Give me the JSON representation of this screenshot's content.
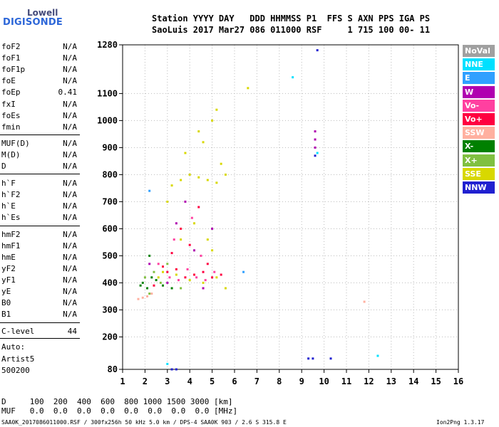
{
  "logo": {
    "line1": "Lowell",
    "line2": "DIGISONDE"
  },
  "header": {
    "line1": "Station YYYY DAY   DDD HHMMSS P1  FFS S AXN PPS IGA PS",
    "line2": "SaoLuis 2017 Mar27 086 011000 RSF     1 715 100 00- 11"
  },
  "parameters": [
    {
      "name": "foF2",
      "value": "N/A"
    },
    {
      "name": "foF1",
      "value": "N/A"
    },
    {
      "name": "foF1p",
      "value": "N/A"
    },
    {
      "name": "foE",
      "value": "N/A"
    },
    {
      "name": "foEp",
      "value": "0.41"
    },
    {
      "name": "fxI",
      "value": "N/A"
    },
    {
      "name": "foEs",
      "value": "N/A"
    },
    {
      "name": "fmin",
      "value": "N/A"
    },
    {
      "name": "MUF(D)",
      "value": "N/A"
    },
    {
      "name": "M(D)",
      "value": "N/A"
    },
    {
      "name": "D",
      "value": "N/A"
    },
    {
      "name": "h`F",
      "value": "N/A"
    },
    {
      "name": "h`F2",
      "value": "N/A"
    },
    {
      "name": "h`E",
      "value": "N/A"
    },
    {
      "name": "h`Es",
      "value": "N/A"
    },
    {
      "name": "hmF2",
      "value": "N/A"
    },
    {
      "name": "hmF1",
      "value": "N/A"
    },
    {
      "name": "hmE",
      "value": "N/A"
    },
    {
      "name": "yF2",
      "value": "N/A"
    },
    {
      "name": "yF1",
      "value": "N/A"
    },
    {
      "name": "yE",
      "value": "N/A"
    },
    {
      "name": "B0",
      "value": "N/A"
    },
    {
      "name": "B1",
      "value": "N/A"
    },
    {
      "name": "C-level",
      "value": "44"
    }
  ],
  "auto": {
    "line1": "Auto:",
    "line2": "Artist5",
    "line3": "500200"
  },
  "bottom_table": {
    "row1": "D     100  200  400  600  800 1000 1500 3000 [km]",
    "row2": "MUF   0.0  0.0  0.0  0.0  0.0  0.0  0.0  0.0 [MHz]"
  },
  "footer": {
    "left": "SAA0K_2017086011000.RSF / 300fx256h 50 kHz 5.0 km / DPS-4 SAA0K 903 / 2.6 S 315.8 E",
    "right": "Ion2Png 1.3.17"
  },
  "legend": [
    {
      "label": "NoVal",
      "color": "#a0a0a0"
    },
    {
      "label": "NNE",
      "color": "#00e0ff"
    },
    {
      "label": "E",
      "color": "#30a0ff"
    },
    {
      "label": "W",
      "color": "#b000b0"
    },
    {
      "label": "Vo-",
      "color": "#ff40a0"
    },
    {
      "label": "Vo+",
      "color": "#ff0040"
    },
    {
      "label": "SSW",
      "color": "#ffb0a0"
    },
    {
      "label": "X-",
      "color": "#008000"
    },
    {
      "label": "X+",
      "color": "#80c040"
    },
    {
      "label": "SSE",
      "color": "#d8d800"
    },
    {
      "label": "NNW",
      "color": "#2020d0"
    }
  ],
  "chart_data": {
    "type": "scatter",
    "title": "",
    "xlabel": "",
    "ylabel": "",
    "xlim": [
      1,
      16
    ],
    "ylim": [
      80,
      1280
    ],
    "x_ticks": [
      1,
      2,
      3,
      4,
      5,
      6,
      7,
      8,
      9,
      10,
      11,
      12,
      13,
      14,
      15,
      16
    ],
    "y_ticks": [
      80,
      200,
      300,
      400,
      500,
      600,
      700,
      800,
      900,
      1000,
      1100,
      1280
    ],
    "grid": true,
    "series": [
      {
        "name": "SSE",
        "color": "#d8d800",
        "points": [
          [
            3.2,
            760
          ],
          [
            3.6,
            780
          ],
          [
            4.0,
            800
          ],
          [
            4.4,
            790
          ],
          [
            4.8,
            780
          ],
          [
            5.2,
            770
          ],
          [
            5.6,
            800
          ],
          [
            3.8,
            880
          ],
          [
            4.6,
            920
          ],
          [
            5.0,
            1000
          ],
          [
            5.2,
            1040
          ],
          [
            4.2,
            620
          ],
          [
            4.8,
            560
          ],
          [
            5.0,
            520
          ],
          [
            3.4,
            430
          ],
          [
            4.0,
            410
          ],
          [
            4.6,
            400
          ],
          [
            5.2,
            420
          ],
          [
            2.8,
            440
          ],
          [
            3.0,
            700
          ],
          [
            6.6,
            1120
          ],
          [
            5.4,
            840
          ],
          [
            4.4,
            960
          ],
          [
            3.6,
            560
          ],
          [
            2.6,
            420
          ],
          [
            5.6,
            380
          ]
        ]
      },
      {
        "name": "Vo+",
        "color": "#ff0040",
        "points": [
          [
            3.0,
            440
          ],
          [
            3.4,
            450
          ],
          [
            3.8,
            420
          ],
          [
            4.2,
            430
          ],
          [
            4.6,
            440
          ],
          [
            5.0,
            420
          ],
          [
            5.4,
            430
          ],
          [
            2.4,
            390
          ],
          [
            3.6,
            600
          ],
          [
            4.4,
            680
          ],
          [
            3.2,
            510
          ],
          [
            4.8,
            470
          ],
          [
            2.8,
            460
          ],
          [
            4.0,
            540
          ]
        ]
      },
      {
        "name": "Vo-",
        "color": "#ff40a0",
        "points": [
          [
            3.1,
            420
          ],
          [
            3.5,
            410
          ],
          [
            3.9,
            450
          ],
          [
            4.3,
            420
          ],
          [
            4.7,
            410
          ],
          [
            2.6,
            470
          ],
          [
            3.3,
            560
          ],
          [
            4.1,
            640
          ],
          [
            5.1,
            440
          ],
          [
            4.5,
            500
          ]
        ]
      },
      {
        "name": "W",
        "color": "#b000b0",
        "points": [
          [
            2.2,
            470
          ],
          [
            3.0,
            400
          ],
          [
            3.4,
            620
          ],
          [
            3.8,
            700
          ],
          [
            4.2,
            520
          ],
          [
            4.6,
            380
          ],
          [
            9.6,
            960
          ],
          [
            9.6,
            900
          ],
          [
            9.6,
            930
          ],
          [
            5.0,
            600
          ]
        ]
      },
      {
        "name": "X-",
        "color": "#008000",
        "points": [
          [
            1.9,
            400
          ],
          [
            2.1,
            380
          ],
          [
            2.3,
            420
          ],
          [
            2.5,
            410
          ],
          [
            2.8,
            390
          ],
          [
            3.2,
            380
          ],
          [
            2.2,
            500
          ],
          [
            1.8,
            390
          ]
        ]
      },
      {
        "name": "X+",
        "color": "#80c040",
        "points": [
          [
            2.0,
            420
          ],
          [
            2.4,
            440
          ],
          [
            2.7,
            400
          ],
          [
            3.0,
            470
          ],
          [
            2.2,
            360
          ],
          [
            3.6,
            380
          ]
        ]
      },
      {
        "name": "SSW",
        "color": "#ffb0a0",
        "points": [
          [
            1.7,
            340
          ],
          [
            1.9,
            345
          ],
          [
            2.1,
            350
          ],
          [
            2.3,
            360
          ],
          [
            11.8,
            330
          ]
        ]
      },
      {
        "name": "NNE",
        "color": "#00e0ff",
        "points": [
          [
            8.6,
            1160
          ],
          [
            9.7,
            880
          ],
          [
            12.4,
            130
          ],
          [
            3.0,
            100
          ]
        ]
      },
      {
        "name": "E",
        "color": "#30a0ff",
        "points": [
          [
            6.4,
            440
          ],
          [
            2.2,
            740
          ]
        ]
      },
      {
        "name": "NNW",
        "color": "#2020d0",
        "points": [
          [
            9.7,
            1260
          ],
          [
            9.3,
            120
          ],
          [
            9.5,
            120
          ],
          [
            10.3,
            120
          ],
          [
            9.6,
            870
          ],
          [
            3.2,
            80
          ],
          [
            3.4,
            80
          ]
        ]
      }
    ]
  }
}
